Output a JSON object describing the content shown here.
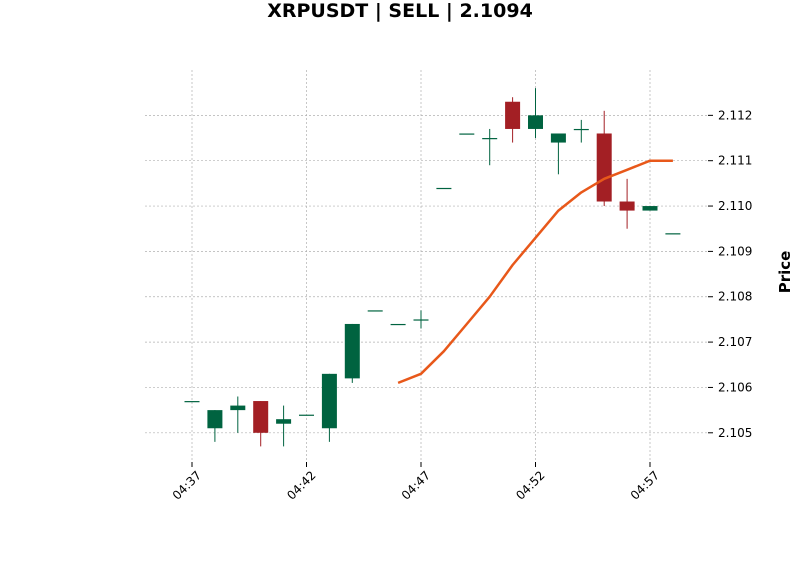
{
  "chart_data": {
    "type": "candlestick",
    "title": "XRPUSDT | SELL | 2.1094",
    "ylabel": "Price",
    "xlabel": "",
    "ylim": [
      2.1044,
      2.113
    ],
    "grid": true,
    "colors": {
      "up": "#006340",
      "down": "#a31f24",
      "line": "#e8581a",
      "grid": "#b0b0b0"
    },
    "y_ticks": [
      2.105,
      2.106,
      2.107,
      2.108,
      2.109,
      2.11,
      2.111,
      2.112
    ],
    "y_tick_labels": [
      "2.105",
      "2.106",
      "2.107",
      "2.108",
      "2.109",
      "2.110",
      "2.111",
      "2.112"
    ],
    "x_ticks": [
      "04:37",
      "04:42",
      "04:47",
      "04:52",
      "04:57"
    ],
    "candles": [
      {
        "time": "04:37",
        "open": 2.1057,
        "high": 2.1057,
        "low": 2.1057,
        "close": 2.1057
      },
      {
        "time": "04:38",
        "open": 2.1051,
        "high": 2.1055,
        "low": 2.1048,
        "close": 2.1055
      },
      {
        "time": "04:39",
        "open": 2.1055,
        "high": 2.1058,
        "low": 2.105,
        "close": 2.1056
      },
      {
        "time": "04:40",
        "open": 2.1057,
        "high": 2.1057,
        "low": 2.1047,
        "close": 2.105
      },
      {
        "time": "04:41",
        "open": 2.1052,
        "high": 2.1056,
        "low": 2.1047,
        "close": 2.1053
      },
      {
        "time": "04:42",
        "open": 2.1054,
        "high": 2.1054,
        "low": 2.1054,
        "close": 2.1054
      },
      {
        "time": "04:43",
        "open": 2.1051,
        "high": 2.1063,
        "low": 2.1048,
        "close": 2.1063
      },
      {
        "time": "04:44",
        "open": 2.1062,
        "high": 2.1074,
        "low": 2.1061,
        "close": 2.1074
      },
      {
        "time": "04:45",
        "open": 2.1077,
        "high": 2.1077,
        "low": 2.1077,
        "close": 2.1077
      },
      {
        "time": "04:46",
        "open": 2.1074,
        "high": 2.1074,
        "low": 2.1074,
        "close": 2.1074
      },
      {
        "time": "04:47",
        "open": 2.1075,
        "high": 2.1077,
        "low": 2.1073,
        "close": 2.1075
      },
      {
        "time": "04:48",
        "open": 2.1104,
        "high": 2.1104,
        "low": 2.1104,
        "close": 2.1104
      },
      {
        "time": "04:49",
        "open": 2.1116,
        "high": 2.1116,
        "low": 2.1116,
        "close": 2.1116
      },
      {
        "time": "04:50",
        "open": 2.1115,
        "high": 2.1117,
        "low": 2.1109,
        "close": 2.1115
      },
      {
        "time": "04:51",
        "open": 2.1123,
        "high": 2.1124,
        "low": 2.1114,
        "close": 2.1117
      },
      {
        "time": "04:52",
        "open": 2.1117,
        "high": 2.1126,
        "low": 2.1115,
        "close": 2.112
      },
      {
        "time": "04:53",
        "open": 2.1114,
        "high": 2.1116,
        "low": 2.1107,
        "close": 2.1116
      },
      {
        "time": "04:54",
        "open": 2.1117,
        "high": 2.1119,
        "low": 2.1114,
        "close": 2.1117
      },
      {
        "time": "04:55",
        "open": 2.1116,
        "high": 2.1121,
        "low": 2.11,
        "close": 2.1101
      },
      {
        "time": "04:56",
        "open": 2.1101,
        "high": 2.1106,
        "low": 2.1095,
        "close": 2.1099
      },
      {
        "time": "04:57",
        "open": 2.1099,
        "high": 2.11,
        "low": 2.1099,
        "close": 2.11
      },
      {
        "time": "04:58",
        "open": 2.1094,
        "high": 2.1094,
        "low": 2.1094,
        "close": 2.1094
      }
    ],
    "moving_average": [
      {
        "time": "04:46",
        "value": 2.1061
      },
      {
        "time": "04:47",
        "value": 2.1063
      },
      {
        "time": "04:48",
        "value": 2.1068
      },
      {
        "time": "04:49",
        "value": 2.1074
      },
      {
        "time": "04:50",
        "value": 2.108
      },
      {
        "time": "04:51",
        "value": 2.1087
      },
      {
        "time": "04:52",
        "value": 2.1093
      },
      {
        "time": "04:53",
        "value": 2.1099
      },
      {
        "time": "04:54",
        "value": 2.1103
      },
      {
        "time": "04:55",
        "value": 2.1106
      },
      {
        "time": "04:56",
        "value": 2.1108
      },
      {
        "time": "04:57",
        "value": 2.111
      },
      {
        "time": "04:58",
        "value": 2.111
      }
    ]
  }
}
